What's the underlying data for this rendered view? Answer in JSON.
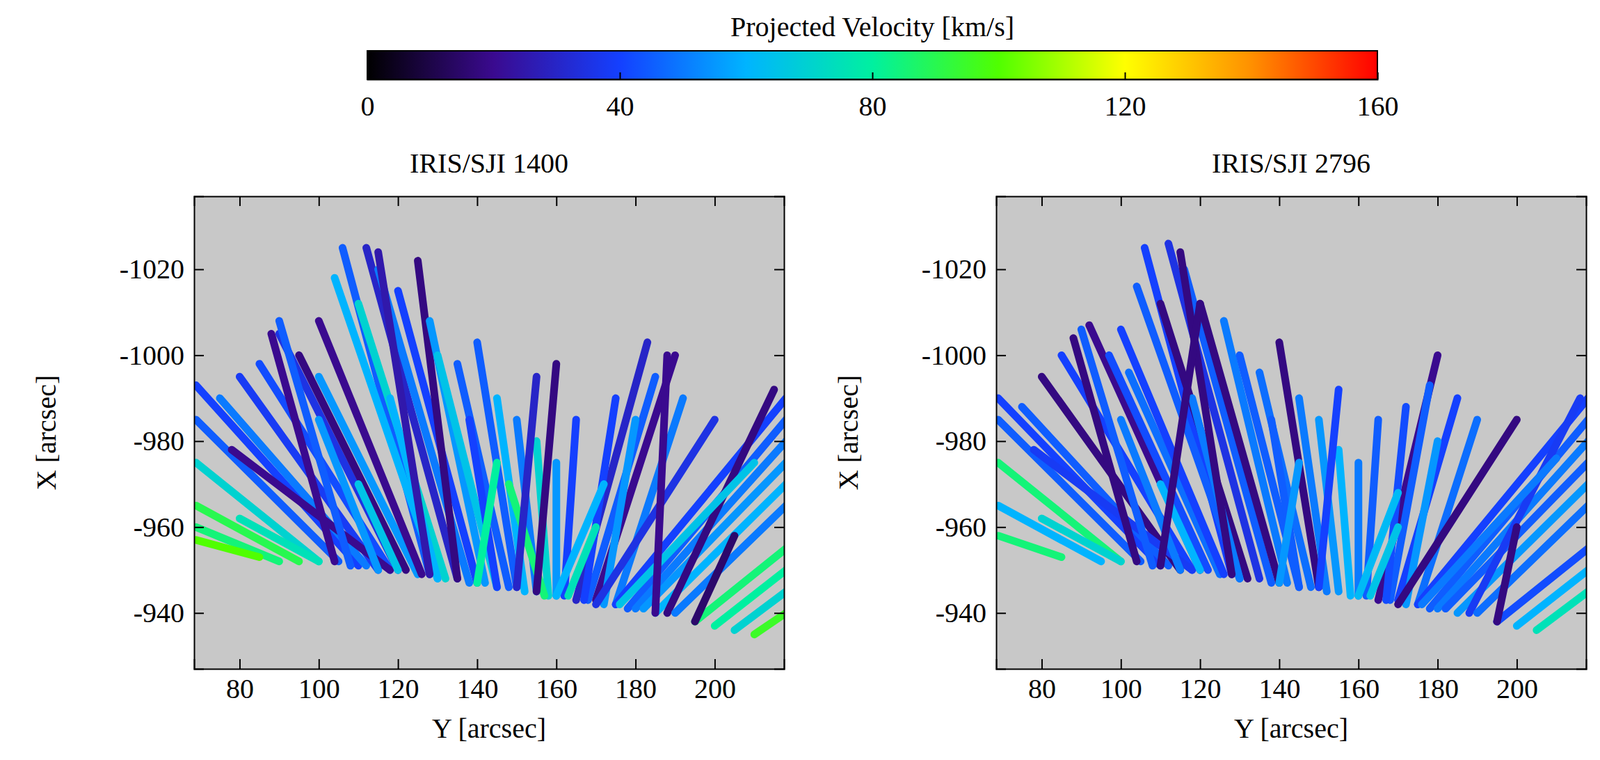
{
  "colorbar": {
    "label": "Projected Velocity [km/s]",
    "range": [
      0,
      160
    ],
    "ticks": [
      0,
      40,
      80,
      120,
      160
    ]
  },
  "chart_data": [
    {
      "type": "fibrils",
      "title": "IRIS/SJI 1400",
      "x_label": "Y [arcsec]",
      "y_label": "X [arcsec]",
      "xlim": [
        68.5,
        217.5
      ],
      "ylim": [
        -927,
        -1037
      ],
      "xticks": [
        80,
        100,
        120,
        140,
        160,
        180,
        200
      ],
      "yticks": [
        -1020,
        -1000,
        -980,
        -960,
        -940
      ],
      "segments": [
        [
          100,
          -952,
          69,
          -975,
          70
        ],
        [
          105,
          -952,
          69,
          -985,
          45
        ],
        [
          110,
          -951,
          69,
          -993,
          40
        ],
        [
          112,
          -951,
          75,
          -990,
          50
        ],
        [
          115,
          -950,
          80,
          -995,
          38
        ],
        [
          118,
          -950,
          85,
          -998,
          42
        ],
        [
          120,
          -950,
          90,
          -1005,
          35
        ],
        [
          95,
          -952,
          69,
          -965,
          90
        ],
        [
          90,
          -952,
          69,
          -960,
          85
        ],
        [
          122,
          -950,
          95,
          -1000,
          18
        ],
        [
          125,
          -949,
          100,
          -995,
          55
        ],
        [
          85,
          -953,
          69,
          -957,
          100
        ],
        [
          118,
          -950,
          78,
          -978,
          20
        ],
        [
          128,
          -949,
          106,
          -1025,
          45
        ],
        [
          130,
          -948,
          104,
          -1018,
          60
        ],
        [
          132,
          -948,
          110,
          -1012,
          70
        ],
        [
          135,
          -948,
          112,
          -1025,
          30
        ],
        [
          138,
          -947,
          115,
          -1020,
          50
        ],
        [
          140,
          -947,
          120,
          -1015,
          40
        ],
        [
          135,
          -948,
          125,
          -1022,
          18
        ],
        [
          142,
          -947,
          128,
          -1008,
          55
        ],
        [
          145,
          -946,
          130,
          -1000,
          65
        ],
        [
          126,
          -949,
          100,
          -1008,
          20
        ],
        [
          148,
          -946,
          135,
          -998,
          45
        ],
        [
          150,
          -946,
          140,
          -1003,
          45
        ],
        [
          152,
          -945,
          145,
          -990,
          60
        ],
        [
          155,
          -945,
          150,
          -985,
          50
        ],
        [
          158,
          -944,
          155,
          -980,
          70
        ],
        [
          160,
          -944,
          160,
          -975,
          55
        ],
        [
          162,
          -944,
          165,
          -985,
          40
        ],
        [
          157,
          -944,
          148,
          -970,
          85
        ],
        [
          165,
          -943,
          183,
          -1003,
          30
        ],
        [
          168,
          -943,
          185,
          -995,
          45
        ],
        [
          170,
          -943,
          190,
          -1000,
          20
        ],
        [
          172,
          -942,
          180,
          -985,
          55
        ],
        [
          167,
          -943,
          175,
          -990,
          40
        ],
        [
          175,
          -942,
          192,
          -990,
          50
        ],
        [
          160,
          -944,
          172,
          -970,
          60
        ],
        [
          175,
          -942,
          218,
          -990,
          40
        ],
        [
          178,
          -941,
          218,
          -985,
          45
        ],
        [
          180,
          -941,
          218,
          -980,
          50
        ],
        [
          182,
          -941,
          218,
          -975,
          55
        ],
        [
          185,
          -940,
          218,
          -970,
          60
        ],
        [
          170,
          -942,
          200,
          -985,
          35
        ],
        [
          188,
          -940,
          215,
          -992,
          18
        ],
        [
          190,
          -940,
          218,
          -965,
          50
        ],
        [
          176,
          -942,
          210,
          -975,
          65
        ],
        [
          195,
          -938,
          218,
          -955,
          85
        ],
        [
          200,
          -937,
          218,
          -950,
          80
        ],
        [
          205,
          -936,
          218,
          -945,
          70
        ],
        [
          195,
          -938,
          205,
          -958,
          15
        ],
        [
          210,
          -935,
          218,
          -940,
          95
        ],
        [
          108,
          -951,
          90,
          -1008,
          45
        ],
        [
          104,
          -952,
          88,
          -1005,
          20
        ],
        [
          115,
          -950,
          100,
          -985,
          55
        ],
        [
          145,
          -946,
          138,
          -985,
          40
        ],
        [
          150,
          -946,
          155,
          -995,
          30
        ],
        [
          130,
          -948,
          118,
          -990,
          60
        ],
        [
          163,
          -944,
          170,
          -960,
          75
        ],
        [
          140,
          -947,
          145,
          -975,
          80
        ],
        [
          120,
          -950,
          110,
          -970,
          65
        ],
        [
          100,
          -952,
          80,
          -962,
          75
        ],
        [
          128,
          -949,
          115,
          -1024,
          25
        ],
        [
          185,
          -940,
          188,
          -1000,
          20
        ],
        [
          155,
          -945,
          160,
          -998,
          18
        ]
      ]
    },
    {
      "type": "fibrils",
      "title": "IRIS/SJI 2796",
      "x_label": "Y [arcsec]",
      "y_label": "X [arcsec]",
      "xlim": [
        68.5,
        217.5
      ],
      "ylim": [
        -927,
        -1037
      ],
      "xticks": [
        80,
        100,
        120,
        140,
        160,
        180,
        200
      ],
      "yticks": [
        -1020,
        -1000,
        -980,
        -960,
        -940
      ],
      "segments": [
        [
          100,
          -952,
          69,
          -975,
          85
        ],
        [
          105,
          -952,
          69,
          -985,
          45
        ],
        [
          110,
          -951,
          69,
          -990,
          40
        ],
        [
          112,
          -951,
          75,
          -988,
          45
        ],
        [
          115,
          -950,
          80,
          -995,
          18
        ],
        [
          118,
          -950,
          85,
          -1000,
          40
        ],
        [
          120,
          -950,
          92,
          -1007,
          20
        ],
        [
          95,
          -952,
          69,
          -965,
          60
        ],
        [
          122,
          -950,
          97,
          -1000,
          42
        ],
        [
          125,
          -949,
          102,
          -996,
          48
        ],
        [
          118,
          -950,
          78,
          -978,
          38
        ],
        [
          128,
          -949,
          106,
          -1025,
          40
        ],
        [
          130,
          -948,
          104,
          -1016,
          45
        ],
        [
          132,
          -948,
          110,
          -1012,
          18
        ],
        [
          135,
          -948,
          112,
          -1026,
          35
        ],
        [
          138,
          -947,
          116,
          -1020,
          45
        ],
        [
          140,
          -947,
          120,
          -1012,
          18
        ],
        [
          142,
          -947,
          126,
          -1008,
          50
        ],
        [
          145,
          -946,
          130,
          -1000,
          45
        ],
        [
          126,
          -949,
          100,
          -1006,
          40
        ],
        [
          148,
          -946,
          135,
          -996,
          48
        ],
        [
          150,
          -946,
          140,
          -1003,
          18
        ],
        [
          152,
          -945,
          145,
          -990,
          50
        ],
        [
          155,
          -945,
          150,
          -985,
          55
        ],
        [
          158,
          -944,
          155,
          -978,
          60
        ],
        [
          160,
          -944,
          160,
          -975,
          50
        ],
        [
          162,
          -944,
          165,
          -985,
          45
        ],
        [
          165,
          -943,
          180,
          -1000,
          20
        ],
        [
          168,
          -943,
          178,
          -993,
          45
        ],
        [
          170,
          -943,
          185,
          -990,
          40
        ],
        [
          172,
          -942,
          180,
          -980,
          55
        ],
        [
          167,
          -943,
          172,
          -988,
          42
        ],
        [
          175,
          -942,
          190,
          -985,
          48
        ],
        [
          160,
          -944,
          170,
          -968,
          62
        ],
        [
          175,
          -942,
          218,
          -990,
          40
        ],
        [
          178,
          -941,
          218,
          -985,
          45
        ],
        [
          180,
          -941,
          218,
          -980,
          50
        ],
        [
          182,
          -941,
          218,
          -975,
          45
        ],
        [
          185,
          -940,
          218,
          -970,
          55
        ],
        [
          170,
          -942,
          200,
          -985,
          18
        ],
        [
          188,
          -940,
          216,
          -990,
          38
        ],
        [
          190,
          -940,
          218,
          -965,
          48
        ],
        [
          176,
          -942,
          210,
          -976,
          50
        ],
        [
          195,
          -938,
          218,
          -955,
          42
        ],
        [
          200,
          -937,
          218,
          -950,
          60
        ],
        [
          205,
          -936,
          218,
          -945,
          75
        ],
        [
          195,
          -938,
          200,
          -960,
          18
        ],
        [
          108,
          -951,
          90,
          -1006,
          45
        ],
        [
          104,
          -952,
          88,
          -1004,
          18
        ],
        [
          115,
          -950,
          100,
          -985,
          50
        ],
        [
          145,
          -946,
          138,
          -985,
          45
        ],
        [
          150,
          -946,
          155,
          -992,
          40
        ],
        [
          130,
          -948,
          118,
          -990,
          50
        ],
        [
          163,
          -944,
          170,
          -960,
          65
        ],
        [
          140,
          -947,
          145,
          -975,
          55
        ],
        [
          120,
          -950,
          110,
          -970,
          60
        ],
        [
          100,
          -952,
          80,
          -962,
          70
        ],
        [
          128,
          -949,
          115,
          -1024,
          18
        ],
        [
          85,
          -953,
          69,
          -958,
          85
        ],
        [
          110,
          -951,
          120,
          -1012,
          18
        ]
      ]
    }
  ]
}
